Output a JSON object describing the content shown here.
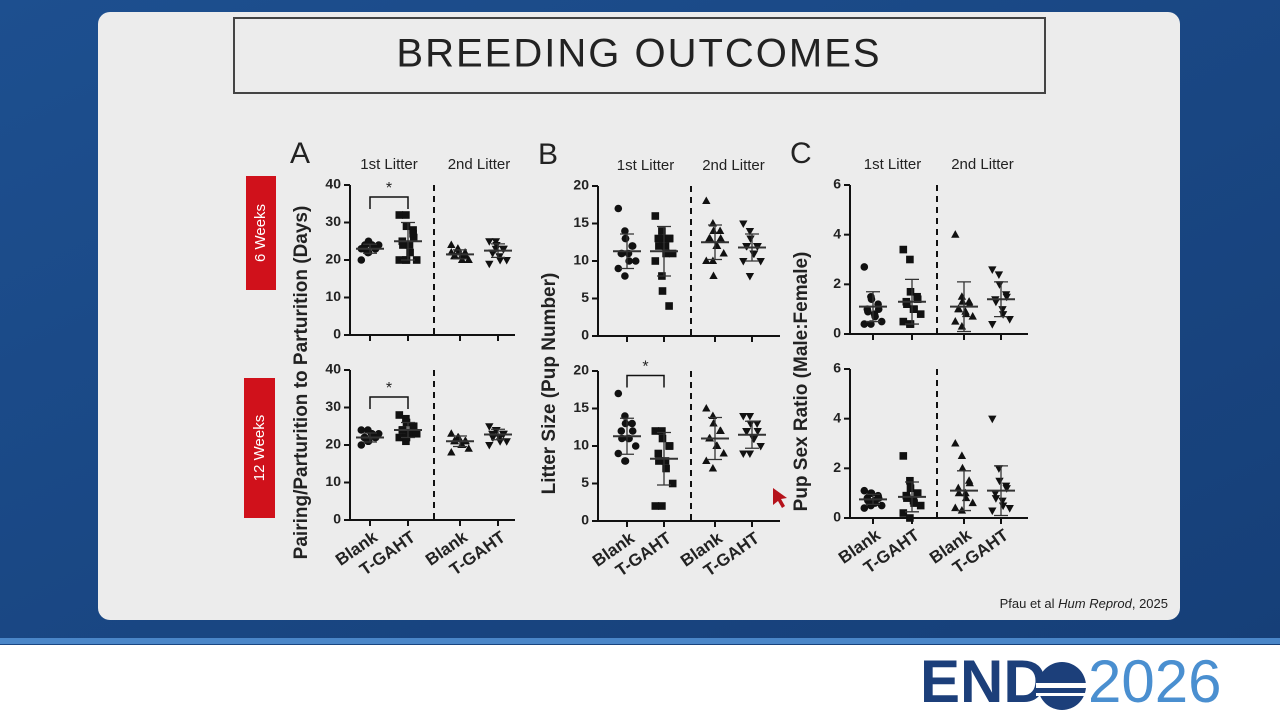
{
  "slide": {
    "title": "BREEDING OUTCOMES",
    "row_labels": [
      "6 Weeks",
      "12 Weeks"
    ],
    "citation": [
      "Pfau et al ",
      "Hum Reprod",
      ", 2025"
    ],
    "logo": {
      "text": "END",
      "year": "2026"
    }
  },
  "chart_data": [
    {
      "type": "dot",
      "panel": "A",
      "ylabel": "Pairing/Parturition to Parturition (Days)",
      "group_labels": [
        "1st Litter",
        "2nd Litter"
      ],
      "annotation": "*",
      "ylim": [
        0,
        40
      ],
      "yticks": [
        0,
        10,
        20,
        30,
        40
      ],
      "color": "#111111",
      "groups": [
        {
          "marker": "circle",
          "values": [
            20,
            22,
            22,
            23,
            23,
            23,
            24,
            24,
            24,
            24,
            23,
            22,
            25
          ],
          "mean": 23,
          "sd": 1.2
        },
        {
          "marker": "square",
          "values": [
            32,
            32,
            29,
            28,
            26,
            25,
            24,
            24,
            22,
            20,
            20,
            20,
            20,
            27
          ],
          "mean": 25,
          "sd": 5
        },
        {
          "marker": "triangle-up",
          "values": [
            24,
            23,
            22,
            22,
            21,
            21,
            21,
            21,
            20,
            20,
            22,
            23
          ],
          "mean": 21.5,
          "sd": 1.2
        },
        {
          "marker": "triangle-down",
          "values": [
            25,
            25,
            24,
            23,
            23,
            22,
            22,
            21,
            20,
            20,
            19,
            23
          ],
          "mean": 22.5,
          "sd": 1.8
        }
      ]
    },
    {
      "type": "dot",
      "annotation": "*",
      "categories": [
        "Blank",
        "T-GAHT",
        "Blank",
        "T-GAHT"
      ],
      "ylim": [
        0,
        40
      ],
      "yticks": [
        0,
        10,
        20,
        30,
        40
      ],
      "color": "#111111",
      "groups": [
        {
          "marker": "circle",
          "values": [
            20,
            21,
            21,
            22,
            22,
            22,
            22,
            23,
            23,
            23,
            24,
            24,
            21
          ],
          "mean": 22,
          "sd": 1.2
        },
        {
          "marker": "square",
          "values": [
            28,
            27,
            26,
            25,
            25,
            24,
            24,
            23,
            23,
            23,
            22,
            21,
            22
          ],
          "mean": 24,
          "sd": 2
        },
        {
          "marker": "triangle-up",
          "values": [
            23,
            22,
            22,
            21,
            21,
            21,
            21,
            20,
            20,
            19,
            18
          ],
          "mean": 21,
          "sd": 1.4
        },
        {
          "marker": "triangle-down",
          "values": [
            25,
            24,
            24,
            23,
            23,
            23,
            22,
            22,
            21,
            21,
            20
          ],
          "mean": 22.8,
          "sd": 1.4
        }
      ]
    },
    {
      "type": "dot",
      "panel": "B",
      "ylabel": "Litter Size (Pup Number)",
      "group_labels": [
        "1st Litter",
        "2nd Litter"
      ],
      "ylim": [
        0,
        20
      ],
      "yticks": [
        0,
        5,
        10,
        15,
        20
      ],
      "color": "#111111",
      "groups": [
        {
          "marker": "circle",
          "values": [
            17,
            14,
            13,
            12,
            12,
            11,
            11,
            11,
            10,
            10,
            9,
            8,
            13
          ],
          "mean": 11.3,
          "sd": 2.3
        },
        {
          "marker": "square",
          "values": [
            16,
            14,
            13,
            13,
            13,
            13,
            12,
            12,
            11,
            11,
            10,
            8,
            6,
            4
          ],
          "mean": 11.3,
          "sd": 3.3
        },
        {
          "marker": "triangle-up",
          "values": [
            18,
            15,
            14,
            14,
            13,
            13,
            13,
            12,
            12,
            11,
            10,
            10,
            8
          ],
          "mean": 12.5,
          "sd": 2.3
        },
        {
          "marker": "triangle-down",
          "values": [
            15,
            14,
            13,
            12,
            12,
            12,
            12,
            11,
            11,
            10,
            10,
            8
          ],
          "mean": 11.8,
          "sd": 1.8
        }
      ]
    },
    {
      "type": "dot",
      "annotation": "*",
      "categories": [
        "Blank",
        "T-GAHT",
        "Blank",
        "T-GAHT"
      ],
      "ylim": [
        0,
        20
      ],
      "yticks": [
        0,
        5,
        10,
        15,
        20
      ],
      "color": "#111111",
      "groups": [
        {
          "marker": "circle",
          "values": [
            17,
            14,
            13,
            13,
            12,
            12,
            11,
            11,
            11,
            10,
            9,
            8,
            8
          ],
          "mean": 11.3,
          "sd": 2.4
        },
        {
          "marker": "square",
          "values": [
            12,
            12,
            11,
            10,
            10,
            9,
            8,
            8,
            7,
            5,
            2,
            2
          ],
          "mean": 8.3,
          "sd": 3.5
        },
        {
          "marker": "triangle-up",
          "values": [
            15,
            14,
            13,
            12,
            12,
            11,
            11,
            10,
            10,
            9,
            8,
            7
          ],
          "mean": 11,
          "sd": 2.8
        },
        {
          "marker": "triangle-down",
          "values": [
            14,
            14,
            13,
            13,
            12,
            12,
            12,
            11,
            11,
            10,
            9,
            9
          ],
          "mean": 11.5,
          "sd": 1.8
        }
      ]
    },
    {
      "type": "dot",
      "panel": "C",
      "ylabel": "Pup Sex Ratio (Male:Female)",
      "group_labels": [
        "1st Litter",
        "2nd Litter"
      ],
      "ylim": [
        0,
        6
      ],
      "yticks": [
        0,
        2,
        4,
        6
      ],
      "color": "#111111",
      "groups": [
        {
          "marker": "circle",
          "values": [
            2.7,
            1.5,
            1.4,
            1.2,
            1.0,
            1.0,
            0.9,
            0.8,
            0.7,
            0.5,
            0.4,
            0.4
          ],
          "mean": 1.1,
          "sd": 0.6
        },
        {
          "marker": "square",
          "values": [
            3.4,
            3.0,
            1.7,
            1.5,
            1.4,
            1.3,
            1.2,
            1.0,
            1.0,
            0.8,
            0.5,
            0.4,
            0.4
          ],
          "mean": 1.3,
          "sd": 0.9
        },
        {
          "marker": "triangle-up",
          "values": [
            4.0,
            1.5,
            1.3,
            1.3,
            1.2,
            1.0,
            1.0,
            0.9,
            0.8,
            0.7,
            0.5,
            0.3
          ],
          "mean": 1.1,
          "sd": 1.0
        },
        {
          "marker": "triangle-down",
          "values": [
            2.6,
            2.4,
            2.0,
            1.6,
            1.5,
            1.4,
            1.3,
            1.0,
            0.8,
            0.6,
            0.4
          ],
          "mean": 1.4,
          "sd": 0.7
        }
      ]
    },
    {
      "type": "dot",
      "categories": [
        "Blank",
        "T-GAHT",
        "Blank",
        "T-GAHT"
      ],
      "ylim": [
        0,
        6
      ],
      "yticks": [
        0,
        2,
        4,
        6
      ],
      "color": "#111111",
      "groups": [
        {
          "marker": "circle",
          "values": [
            1.1,
            1.0,
            1.0,
            0.9,
            0.8,
            0.8,
            0.7,
            0.7,
            0.6,
            0.5,
            0.4,
            0.5
          ],
          "mean": 0.75,
          "sd": 0.2
        },
        {
          "marker": "square",
          "values": [
            2.5,
            1.5,
            1.2,
            1.0,
            1.0,
            0.9,
            0.8,
            0.7,
            0.6,
            0.5,
            0.2,
            0
          ],
          "mean": 0.85,
          "sd": 0.6
        },
        {
          "marker": "triangle-up",
          "values": [
            3.0,
            2.5,
            2.0,
            1.5,
            1.4,
            1.2,
            1.0,
            1.0,
            0.8,
            0.6,
            0.4,
            0.3
          ],
          "mean": 1.1,
          "sd": 0.8
        },
        {
          "marker": "triangle-down",
          "values": [
            4.0,
            2.0,
            1.5,
            1.3,
            1.2,
            1.0,
            0.8,
            0.7,
            0.5,
            0.4,
            0.3
          ],
          "mean": 1.1,
          "sd": 1.0
        }
      ]
    }
  ]
}
